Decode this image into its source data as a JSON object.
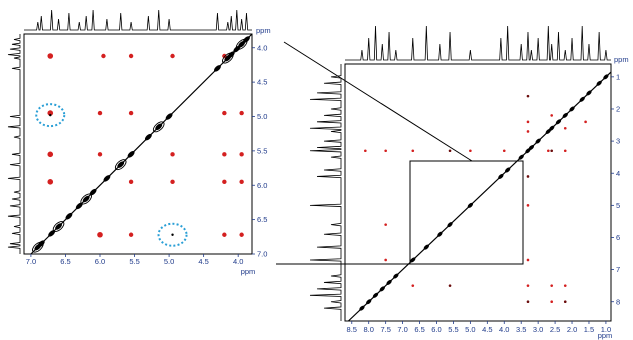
{
  "chart_data": [
    {
      "type": "scatter",
      "title": "",
      "axis_unit": "ppm",
      "xlim": [
        7.1,
        3.8
      ],
      "ylim": [
        3.8,
        7.0
      ],
      "x_ticks": [
        "7.0",
        "6.5",
        "6.0",
        "5.5",
        "5.0",
        "4.5",
        "4.0"
      ],
      "y_ticks": [
        "4.0",
        "4.5",
        "5.0",
        "5.5",
        "6.0",
        "6.5",
        "7.0"
      ],
      "diagonal_peaks": [
        3.88,
        3.95,
        4.02,
        4.1,
        4.15,
        4.3,
        5.0,
        5.15,
        5.3,
        5.55,
        5.7,
        5.9,
        6.1,
        6.2,
        6.3,
        6.45,
        6.6,
        6.7,
        6.85,
        6.9
      ],
      "cross_peaks": [
        {
          "x": 6.72,
          "y": 4.12
        },
        {
          "x": 5.95,
          "y": 4.12
        },
        {
          "x": 5.55,
          "y": 4.12
        },
        {
          "x": 4.95,
          "y": 4.12
        },
        {
          "x": 4.2,
          "y": 4.12
        },
        {
          "x": 6.72,
          "y": 4.95
        },
        {
          "x": 6.0,
          "y": 4.95
        },
        {
          "x": 5.55,
          "y": 4.95
        },
        {
          "x": 4.2,
          "y": 4.95
        },
        {
          "x": 3.95,
          "y": 4.95
        },
        {
          "x": 6.72,
          "y": 5.55
        },
        {
          "x": 6.0,
          "y": 5.55
        },
        {
          "x": 4.95,
          "y": 5.55
        },
        {
          "x": 4.2,
          "y": 5.55
        },
        {
          "x": 3.95,
          "y": 5.55
        },
        {
          "x": 6.72,
          "y": 5.95
        },
        {
          "x": 5.55,
          "y": 5.95
        },
        {
          "x": 4.95,
          "y": 5.95
        },
        {
          "x": 4.2,
          "y": 5.95
        },
        {
          "x": 3.95,
          "y": 5.95
        },
        {
          "x": 6.0,
          "y": 6.72
        },
        {
          "x": 5.55,
          "y": 6.72
        },
        {
          "x": 4.2,
          "y": 6.72
        },
        {
          "x": 3.95,
          "y": 6.72
        }
      ],
      "highlighted_peaks": [
        {
          "x": 6.72,
          "y": 4.98
        },
        {
          "x": 4.95,
          "y": 6.72
        }
      ],
      "grid": false
    },
    {
      "type": "scatter",
      "title": "",
      "axis_unit": "ppm",
      "xlim": [
        8.7,
        0.85
      ],
      "ylim": [
        0.6,
        8.6
      ],
      "x_ticks": [
        "8.5",
        "8.0",
        "7.5",
        "7.0",
        "6.5",
        "6.0",
        "5.5",
        "5.0",
        "4.5",
        "4.0",
        "3.5",
        "3.0",
        "2.5",
        "2.0",
        "1.5",
        "1.0"
      ],
      "y_ticks": [
        "1",
        "2",
        "3",
        "4",
        "5",
        "6",
        "7",
        "8"
      ],
      "zoom_region": {
        "x": [
          7.0,
          3.5
        ],
        "y": [
          3.7,
          7.0
        ]
      },
      "diagonal_peaks": [
        1.0,
        1.2,
        1.5,
        1.7,
        2.0,
        2.2,
        2.4,
        2.6,
        2.7,
        3.0,
        3.2,
        3.3,
        3.5,
        3.9,
        4.1,
        5.0,
        5.6,
        5.9,
        6.3,
        6.7,
        7.2,
        7.4,
        7.6,
        7.8,
        8.0,
        8.2
      ],
      "cross_peaks": [
        {
          "x": 3.3,
          "y": 1.6
        },
        {
          "x": 3.3,
          "y": 2.4
        },
        {
          "x": 3.3,
          "y": 2.7
        },
        {
          "x": 2.2,
          "y": 3.3
        },
        {
          "x": 2.6,
          "y": 3.3
        },
        {
          "x": 2.7,
          "y": 3.3
        },
        {
          "x": 4.0,
          "y": 3.3
        },
        {
          "x": 5.0,
          "y": 3.3
        },
        {
          "x": 5.6,
          "y": 3.3
        },
        {
          "x": 6.7,
          "y": 3.3
        },
        {
          "x": 7.5,
          "y": 3.3
        },
        {
          "x": 8.1,
          "y": 3.3
        },
        {
          "x": 3.3,
          "y": 4.1
        },
        {
          "x": 3.3,
          "y": 5.0
        },
        {
          "x": 3.3,
          "y": 6.7
        },
        {
          "x": 3.3,
          "y": 7.5
        },
        {
          "x": 3.3,
          "y": 8.0
        },
        {
          "x": 7.5,
          "y": 5.6
        },
        {
          "x": 7.5,
          "y": 6.7
        },
        {
          "x": 6.7,
          "y": 7.5
        },
        {
          "x": 5.6,
          "y": 7.5
        },
        {
          "x": 2.6,
          "y": 7.5
        },
        {
          "x": 2.2,
          "y": 7.5
        },
        {
          "x": 2.6,
          "y": 8.0
        },
        {
          "x": 2.2,
          "y": 8.0
        },
        {
          "x": 2.2,
          "y": 2.6
        },
        {
          "x": 2.6,
          "y": 2.2
        },
        {
          "x": 1.6,
          "y": 2.4
        }
      ],
      "grid": false
    }
  ]
}
